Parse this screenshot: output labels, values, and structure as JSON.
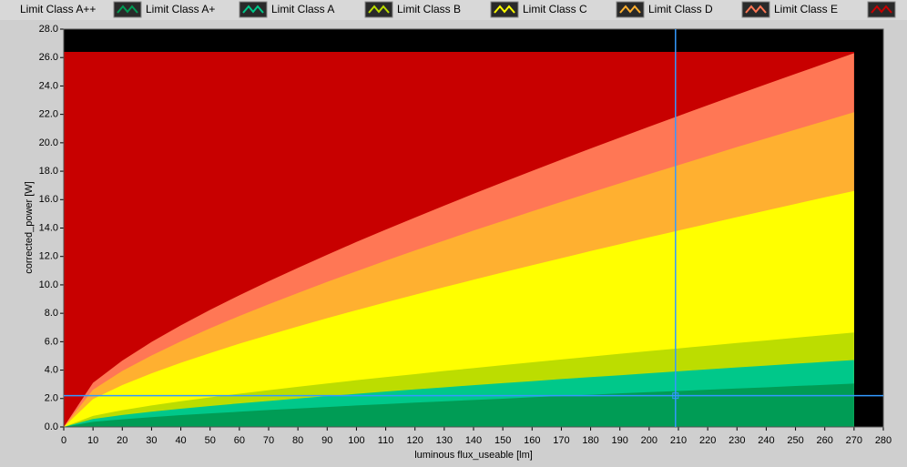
{
  "chart_data": {
    "type": "area",
    "xlabel": "luminous flux_useable [lm]",
    "ylabel": "corrected_power [W]",
    "x": [
      0,
      10,
      20,
      30,
      40,
      50,
      60,
      70,
      80,
      90,
      100,
      110,
      120,
      130,
      140,
      150,
      160,
      170,
      180,
      190,
      200,
      210,
      220,
      230,
      240,
      250,
      260,
      270
    ],
    "series": [
      {
        "name": "Limit Class A++",
        "color": "#009c55",
        "values": [
          0,
          0.36,
          0.54,
          0.69,
          0.83,
          0.95,
          1.07,
          1.19,
          1.3,
          1.4,
          1.51,
          1.61,
          1.71,
          1.8,
          1.9,
          1.99,
          2.09,
          2.18,
          2.27,
          2.36,
          2.45,
          2.53,
          2.62,
          2.71,
          2.79,
          2.88,
          2.96,
          3.05
        ]
      },
      {
        "name": "Limit Class A+",
        "color": "#00c88a",
        "values": [
          0,
          0.56,
          0.84,
          1.07,
          1.28,
          1.47,
          1.66,
          1.83,
          2.0,
          2.17,
          2.33,
          2.49,
          2.64,
          2.79,
          2.94,
          3.08,
          3.22,
          3.37,
          3.51,
          3.64,
          3.78,
          3.92,
          4.05,
          4.19,
          4.32,
          4.45,
          4.58,
          4.71
        ]
      },
      {
        "name": "Limit Class A",
        "color": "#bcdd00",
        "values": [
          0,
          0.78,
          1.18,
          1.51,
          1.81,
          2.08,
          2.34,
          2.59,
          2.83,
          3.06,
          3.29,
          3.51,
          3.72,
          3.94,
          4.14,
          4.35,
          4.55,
          4.75,
          4.95,
          5.15,
          5.34,
          5.53,
          5.72,
          5.91,
          6.09,
          6.28,
          6.46,
          6.65
        ]
      },
      {
        "name": "Limit Class B",
        "color": "#ffff00",
        "values": [
          0,
          1.96,
          2.95,
          3.77,
          4.52,
          5.2,
          5.86,
          6.47,
          7.07,
          7.66,
          8.22,
          8.77,
          9.31,
          9.84,
          10.36,
          10.88,
          11.38,
          11.88,
          12.38,
          12.86,
          13.35,
          13.82,
          14.3,
          14.77,
          15.23,
          15.7,
          16.16,
          16.61
        ]
      },
      {
        "name": "Limit Class C",
        "color": "#ffb030",
        "values": [
          0,
          2.62,
          3.94,
          5.03,
          6.02,
          6.94,
          7.81,
          8.63,
          9.43,
          10.21,
          10.96,
          11.7,
          12.42,
          13.12,
          13.82,
          14.5,
          15.18,
          15.84,
          16.5,
          17.15,
          17.8,
          18.43,
          19.06,
          19.7,
          20.31,
          20.93,
          21.54,
          22.15
        ]
      },
      {
        "name": "Limit Class D",
        "color": "#ff7755",
        "values": [
          0,
          3.11,
          4.67,
          5.98,
          7.15,
          8.24,
          9.27,
          10.25,
          11.2,
          12.12,
          13.02,
          13.89,
          14.74,
          15.58,
          16.41,
          17.22,
          18.02,
          18.81,
          19.6,
          20.37,
          21.14,
          21.89,
          22.64,
          23.39,
          24.12,
          24.85,
          25.58,
          26.31
        ]
      },
      {
        "name": "Limit Class E",
        "color": "#c80000",
        "values": [
          26.4,
          26.4,
          26.4,
          26.4,
          26.4,
          26.4,
          26.4,
          26.4,
          26.4,
          26.4,
          26.4,
          26.4,
          26.4,
          26.4,
          26.4,
          26.4,
          26.4,
          26.4,
          26.4,
          26.4,
          26.4,
          26.4,
          26.4,
          26.4,
          26.4,
          26.4,
          26.4,
          26.4
        ]
      }
    ],
    "xlim": [
      0,
      280
    ],
    "xticks": [
      0,
      10,
      20,
      30,
      40,
      50,
      60,
      70,
      80,
      90,
      100,
      110,
      120,
      130,
      140,
      150,
      160,
      170,
      180,
      190,
      200,
      210,
      220,
      230,
      240,
      250,
      260,
      270,
      280
    ],
    "ylim": [
      0,
      28
    ],
    "yticks": [
      {
        "value": 0,
        "label": "0.0"
      },
      {
        "value": 2,
        "label": "2.0"
      },
      {
        "value": 4,
        "label": "4.0"
      },
      {
        "value": 6,
        "label": "6.0"
      },
      {
        "value": 8,
        "label": "8.0"
      },
      {
        "value": 10,
        "label": "10.0"
      },
      {
        "value": 12,
        "label": "12.0"
      },
      {
        "value": 14,
        "label": "14.0"
      },
      {
        "value": 16,
        "label": "16.0"
      },
      {
        "value": 18,
        "label": "18.0"
      },
      {
        "value": 20,
        "label": "20.0"
      },
      {
        "value": 22,
        "label": "22.0"
      },
      {
        "value": 24,
        "label": "24.0"
      },
      {
        "value": 26,
        "label": "26.0"
      },
      {
        "value": 28,
        "label": "28.0"
      }
    ],
    "plot_background": "#000000",
    "cursor": {
      "x": 209,
      "y": 2.2,
      "color": "#3399ff"
    }
  }
}
